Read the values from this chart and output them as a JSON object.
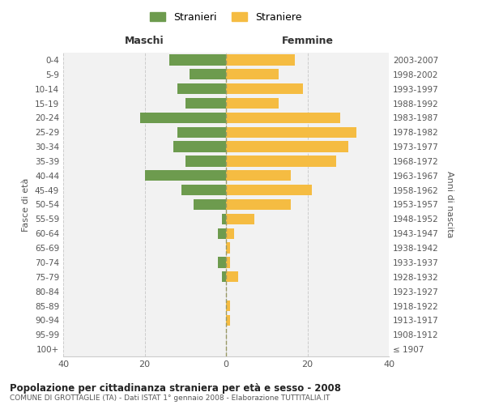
{
  "age_groups": [
    "0-4",
    "5-9",
    "10-14",
    "15-19",
    "20-24",
    "25-29",
    "30-34",
    "35-39",
    "40-44",
    "45-49",
    "50-54",
    "55-59",
    "60-64",
    "65-69",
    "70-74",
    "75-79",
    "80-84",
    "85-89",
    "90-94",
    "95-99",
    "100+"
  ],
  "birth_years": [
    "2003-2007",
    "1998-2002",
    "1993-1997",
    "1988-1992",
    "1983-1987",
    "1978-1982",
    "1973-1977",
    "1968-1972",
    "1963-1967",
    "1958-1962",
    "1953-1957",
    "1948-1952",
    "1943-1947",
    "1938-1942",
    "1933-1937",
    "1928-1932",
    "1923-1927",
    "1918-1922",
    "1913-1917",
    "1908-1912",
    "≤ 1907"
  ],
  "maschi": [
    14,
    9,
    12,
    10,
    21,
    12,
    13,
    10,
    20,
    11,
    8,
    1,
    2,
    0,
    2,
    1,
    0,
    0,
    0,
    0,
    0
  ],
  "femmine": [
    17,
    13,
    19,
    13,
    28,
    32,
    30,
    27,
    16,
    21,
    16,
    7,
    2,
    1,
    1,
    3,
    0,
    1,
    1,
    0,
    0
  ],
  "maschi_color": "#6d9b4e",
  "femmine_color": "#f5bc42",
  "bg_color": "#f2f2f2",
  "grid_color": "#cccccc",
  "dashed_line_color": "#999966",
  "title": "Popolazione per cittadinanza straniera per età e sesso - 2008",
  "subtitle": "COMUNE DI GROTTAGLIE (TA) - Dati ISTAT 1° gennaio 2008 - Elaborazione TUTTITALIA.IT",
  "ylabel_left": "Fasce di età",
  "ylabel_right": "Anni di nascita",
  "xlabel_maschi": "Maschi",
  "xlabel_femmine": "Femmine",
  "legend_maschi": "Stranieri",
  "legend_femmine": "Straniere",
  "xlim": 40
}
